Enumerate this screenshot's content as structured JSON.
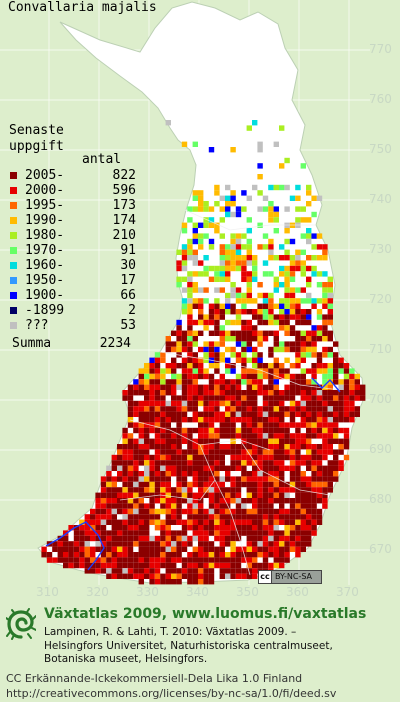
{
  "title": "Convallaria majalis",
  "legend": {
    "heading_line1": "Senaste",
    "heading_line2": "uppgift",
    "count_header": "antal",
    "rows": [
      {
        "label": "2005-",
        "count": "822",
        "color": "#8b0000"
      },
      {
        "label": "2000-",
        "count": "596",
        "color": "#e60000"
      },
      {
        "label": "1995-",
        "count": "173",
        "color": "#ff6600"
      },
      {
        "label": "1990-",
        "count": "174",
        "color": "#ffbb00"
      },
      {
        "label": "1980-",
        "count": "210",
        "color": "#aaee22"
      },
      {
        "label": "1970-",
        "count": "91",
        "color": "#66ff66"
      },
      {
        "label": "1960-",
        "count": "30",
        "color": "#00dddd"
      },
      {
        "label": "1950-",
        "count": "17",
        "color": "#3399ff"
      },
      {
        "label": "1900-",
        "count": "66",
        "color": "#0000ff"
      },
      {
        "label": "-1899",
        "count": "2",
        "color": "#000066"
      },
      {
        "label": "???",
        "count": "53",
        "color": "#c0c0c0"
      }
    ],
    "sum_label": "Summa",
    "sum_value": "2234"
  },
  "y_ticks": [
    "770",
    "760",
    "750",
    "740",
    "730",
    "720",
    "710",
    "700",
    "690",
    "680",
    "670"
  ],
  "x_ticks": [
    "310",
    "320",
    "330",
    "340",
    "350",
    "360",
    "370"
  ],
  "cc_badge": {
    "left": "cc",
    "right": "BY-NC-SA"
  },
  "brand": "Växtatlas 2009, www.luomus.fi/vaxtatlas",
  "citation": {
    "line1": "Lampinen, R. & Lahti, T. 2010: Växtatlas 2009. –",
    "line2": "Helsingfors Universitet, Naturhistoriska centralmuseet,",
    "line3": "Botaniska museet, Helsingfors."
  },
  "license": {
    "line1": "CC Erkännande-Ickekommersiell-Dela Lika 1.0 Finland",
    "line2": "http://creativecommons.org/licenses/by-nc-sa/1.0/fi/deed.sv"
  },
  "colors": {
    "background": "#ddeecc",
    "land": "#ffffff",
    "gridlines": "#ffffff",
    "brand": "#2a7a2a"
  }
}
